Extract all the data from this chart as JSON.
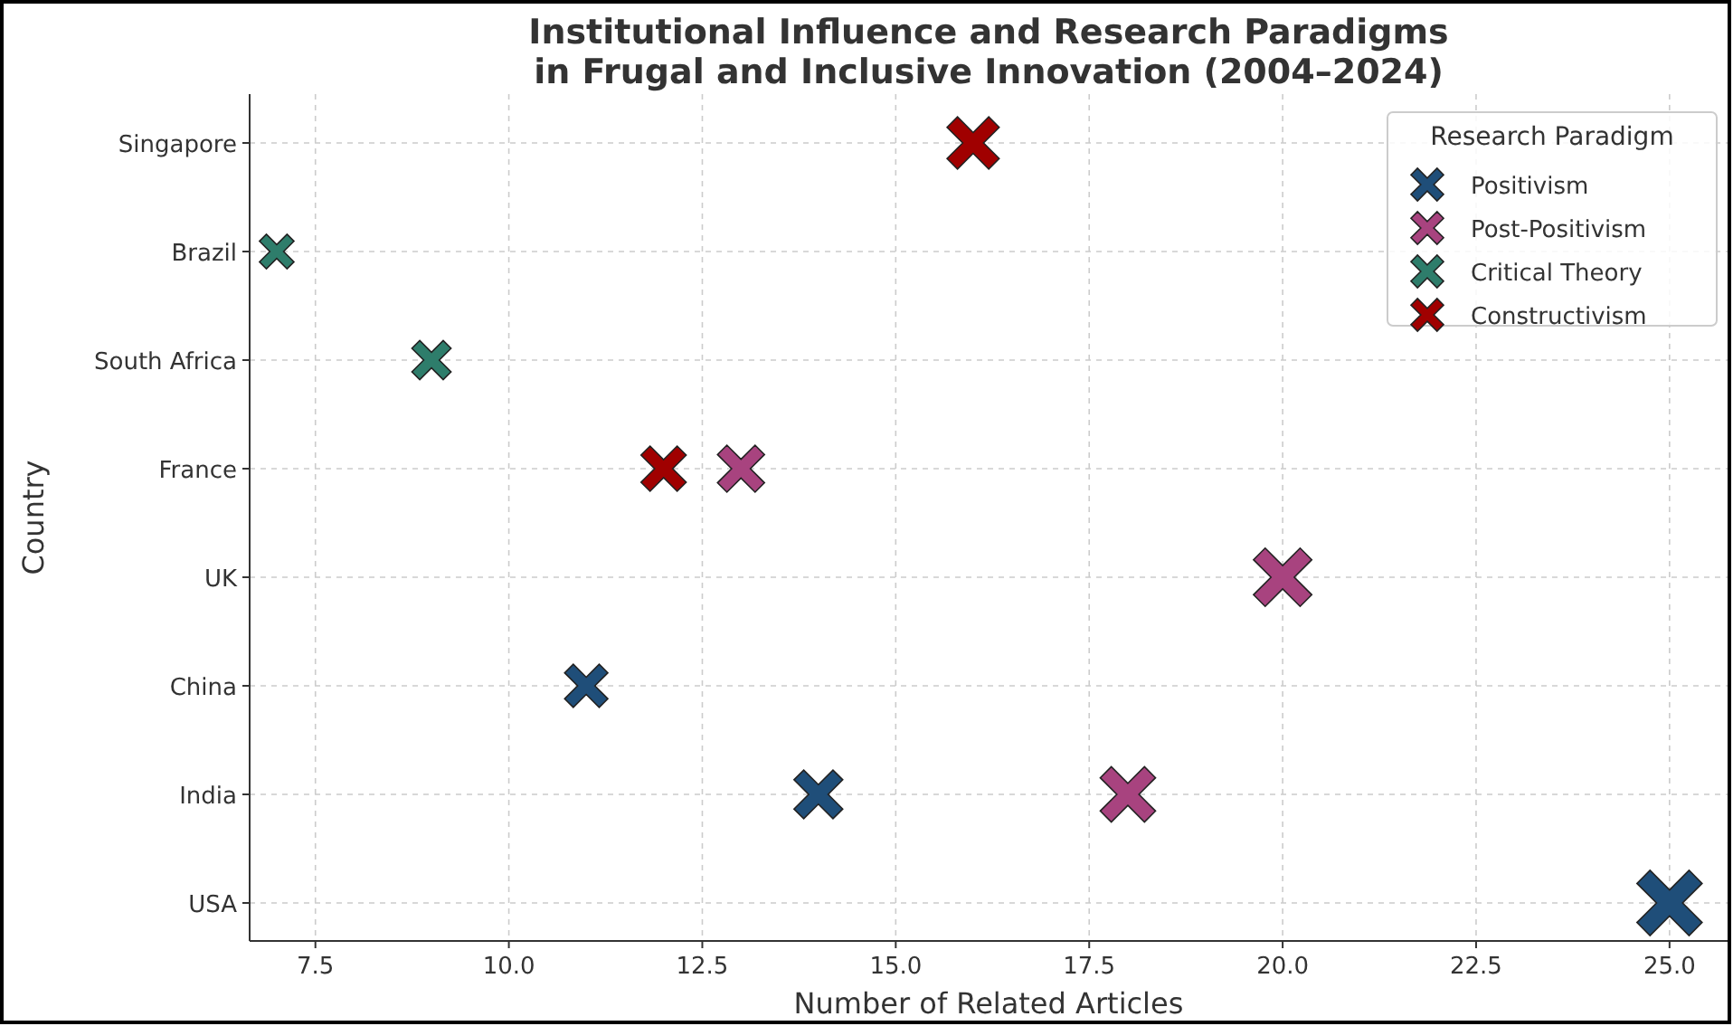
{
  "chart_data": {
    "type": "bubble",
    "orientation": "horizontal",
    "title": "Institutional Influence and Research Paradigms\nin Frugal and Inclusive Innovation (2004–2024)",
    "xlabel": "Number of Related Articles",
    "ylabel": "Country",
    "legend_title": "Research Paradigm",
    "legend": "top right",
    "grid": true,
    "marker": "cross",
    "categories": [
      "Singapore",
      "Brazil",
      "South Africa",
      "France",
      "UK",
      "China",
      "India",
      "USA"
    ],
    "xlim": [
      6.65,
      25.75
    ],
    "xticks": [
      {
        "value": 7.5,
        "label": "7.5"
      },
      {
        "value": 10,
        "label": "10.0"
      },
      {
        "value": 12.5,
        "label": "12.5"
      },
      {
        "value": 15,
        "label": "15.0"
      },
      {
        "value": 17.5,
        "label": "17.5"
      },
      {
        "value": 20,
        "label": "20.0"
      },
      {
        "value": 22.5,
        "label": "22.5"
      },
      {
        "value": 25,
        "label": "25.0"
      }
    ],
    "series": [
      {
        "name": "Positivism",
        "color": "#1f4e79",
        "values": [
          null,
          null,
          null,
          null,
          null,
          11,
          14,
          25
        ],
        "sizes": [
          null,
          null,
          null,
          null,
          null,
          0.44,
          0.56,
          1
        ]
      },
      {
        "name": "Post-Positivism",
        "color": "#a8437f",
        "values": [
          null,
          null,
          null,
          13,
          20,
          null,
          18,
          null
        ],
        "sizes": [
          null,
          null,
          null,
          0.52,
          0.8,
          null,
          0.72,
          null
        ]
      },
      {
        "name": "Critical Theory",
        "color": "#2e7d6b",
        "values": [
          null,
          7,
          9,
          null,
          null,
          null,
          null,
          null
        ],
        "sizes": [
          null,
          0.28,
          0.36,
          null,
          null,
          null,
          null,
          null
        ]
      },
      {
        "name": "Constructivism",
        "color": "#a00000",
        "values": [
          16,
          null,
          null,
          12,
          null,
          null,
          null,
          null
        ],
        "sizes": [
          0.64,
          null,
          null,
          0.48,
          null,
          null,
          null,
          null
        ]
      }
    ]
  }
}
